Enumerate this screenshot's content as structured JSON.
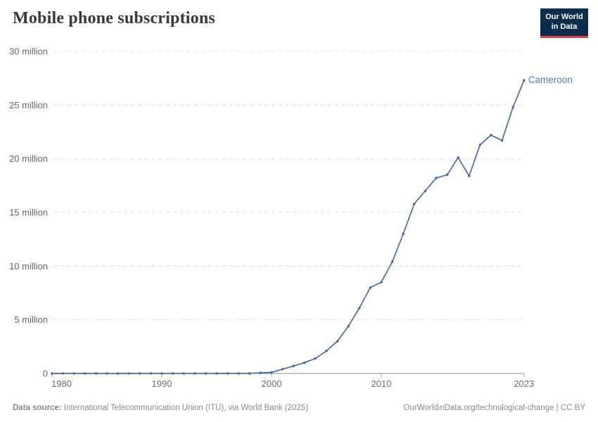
{
  "header": {
    "title": "Mobile phone subscriptions"
  },
  "logo": {
    "line1": "Our World",
    "line2": "in Data",
    "bg_color": "#0d2d4d",
    "accent_color": "#d7403a"
  },
  "chart_data": {
    "type": "line",
    "title": "Mobile phone subscriptions",
    "series": [
      {
        "name": "Cameroon",
        "values": [
          0,
          0,
          0,
          0,
          0,
          0,
          0,
          0,
          0,
          0,
          0,
          0,
          0,
          2000,
          3000,
          3000,
          4000,
          5000,
          5000,
          60000,
          100000,
          400000,
          700000,
          1000000,
          1400000,
          2100000,
          3000000,
          4400000,
          6100000,
          8000000,
          8500000,
          10400000,
          13000000,
          15800000,
          17000000,
          18200000,
          18500000,
          20100000,
          18400000,
          21300000,
          22200000,
          21700000,
          24800000,
          27300000
        ]
      }
    ],
    "x": [
      1980,
      1981,
      1982,
      1983,
      1984,
      1985,
      1986,
      1987,
      1988,
      1989,
      1990,
      1991,
      1992,
      1993,
      1994,
      1995,
      1996,
      1997,
      1998,
      1999,
      2000,
      2001,
      2002,
      2003,
      2004,
      2005,
      2006,
      2007,
      2008,
      2009,
      2010,
      2011,
      2012,
      2013,
      2014,
      2015,
      2016,
      2017,
      2018,
      2019,
      2020,
      2021,
      2022,
      2023
    ],
    "xlabel": "",
    "ylabel": "",
    "ylim": [
      0,
      30000000
    ],
    "yticks": [
      0,
      5000000,
      10000000,
      15000000,
      20000000,
      25000000,
      30000000
    ],
    "ytick_labels": [
      "0",
      "5 million",
      "10 million",
      "15 million",
      "20 million",
      "25 million",
      "30 million"
    ],
    "xticks": [
      1980,
      1990,
      2000,
      2010,
      2023
    ],
    "xtick_labels": [
      "1980",
      "1990",
      "2000",
      "2010",
      "2023"
    ],
    "grid": "dashed horizontal",
    "legend_position": "end-of-line label",
    "line_color": "#4c6da4",
    "series_label_color": "#577eb4",
    "grid_color": "#dcdcdc",
    "axis_color": "#8a8a8a",
    "tick_label_color": "#6e6e6e"
  },
  "footer": {
    "source_label": "Data source:",
    "source_text": " International Telecommunication Union (ITU), via World Bank (2025)",
    "link_text": "OurWorldinData.org/technological-change | CC BY"
  }
}
